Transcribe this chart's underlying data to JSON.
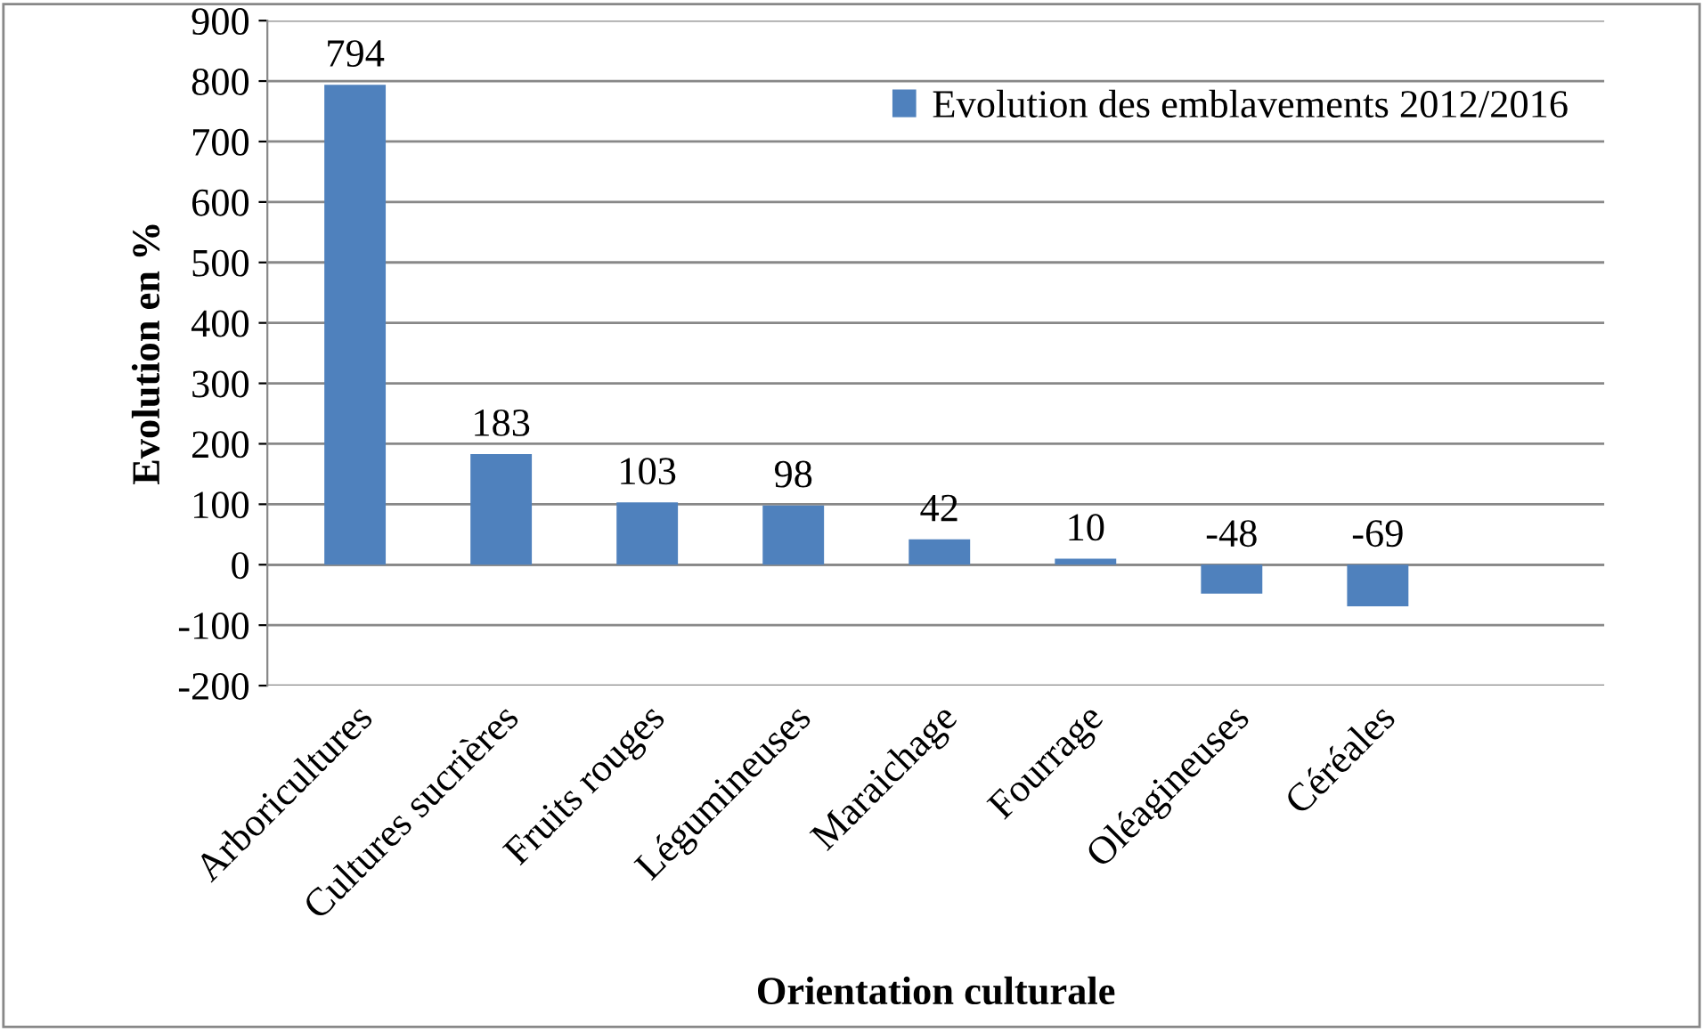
{
  "chart_data": {
    "type": "bar",
    "xlabel": "Orientation culturale",
    "ylabel": "Evolution en %",
    "categories": [
      "Arboricultures",
      "Cultures sucrières",
      "Fruits rouges",
      "Légumineuses",
      "Maraichage",
      "Fourrage",
      "Oléagineuses",
      "Céréales"
    ],
    "series": [
      {
        "name": "Evolution des emblavements 2012/2016",
        "color": "#4f81bd",
        "values": [
          794,
          183,
          103,
          98,
          42,
          10,
          -48,
          -69
        ]
      }
    ],
    "ylim": [
      -200,
      900
    ],
    "yticks": [
      -200,
      -100,
      0,
      100,
      200,
      300,
      400,
      500,
      600,
      700,
      800,
      900
    ],
    "grid": "y",
    "legend": "top right",
    "data_labels": true
  }
}
